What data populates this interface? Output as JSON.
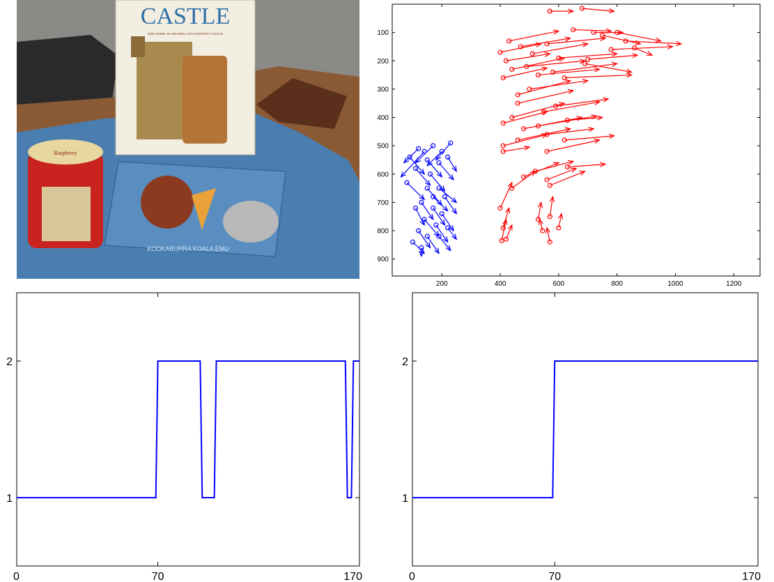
{
  "photo": {
    "book_title": "CASTLE",
    "book_subtitle": "SEE INSIDE AN AMAZING 14TH-CENTURY CASTLE",
    "tin_label": "Raspberry",
    "puzzle_caption": "KOOKABURRA KOALA EMU",
    "colors": {
      "table": "#8a5a35",
      "cloth": "#4a7eb1",
      "book": "#f2eee1",
      "tin": "#c8231e",
      "wall": "#7c7d78"
    }
  },
  "chart_data": [
    {
      "type": "scatter",
      "subtype": "motion-vectors",
      "xlim": [
        30,
        1290
      ],
      "ylim": [
        960,
        0
      ],
      "y_inverted": true,
      "xticks": [
        "200",
        "400",
        "600",
        "800",
        "1000",
        "1200"
      ],
      "yticks": [
        "100",
        "200",
        "300",
        "400",
        "500",
        "600",
        "700",
        "800",
        "900"
      ],
      "xtick_values": [
        200,
        400,
        600,
        800,
        1000,
        1200
      ],
      "ytick_values": [
        100,
        200,
        300,
        400,
        500,
        600,
        700,
        800,
        900
      ],
      "series": [
        {
          "color": "#ff0000",
          "vectors": [
            [
              570,
              25,
              650,
              25
            ],
            [
              680,
              15,
              790,
              25
            ],
            [
              650,
              90,
              780,
              95
            ],
            [
              720,
              100,
              820,
              100
            ],
            [
              800,
              100,
              950,
              130
            ],
            [
              750,
              110,
              880,
              140
            ],
            [
              400,
              170,
              540,
              140
            ],
            [
              430,
              130,
              600,
              95
            ],
            [
              470,
              150,
              640,
              120
            ],
            [
              510,
              175,
              700,
              140
            ],
            [
              560,
              140,
              760,
              120
            ],
            [
              600,
              190,
              800,
              175
            ],
            [
              420,
              200,
              570,
              175
            ],
            [
              440,
              230,
              620,
              190
            ],
            [
              490,
              220,
              690,
              200
            ],
            [
              530,
              250,
              740,
              230
            ],
            [
              580,
              240,
              800,
              210
            ],
            [
              620,
              260,
              850,
              250
            ],
            [
              410,
              260,
              560,
              225
            ],
            [
              460,
              320,
              640,
              270
            ],
            [
              460,
              350,
              650,
              305
            ],
            [
              500,
              300,
              700,
              270
            ],
            [
              550,
              380,
              740,
              345
            ],
            [
              590,
              360,
              770,
              335
            ],
            [
              410,
              420,
              560,
              380
            ],
            [
              440,
              400,
              620,
              350
            ],
            [
              480,
              440,
              680,
              400
            ],
            [
              530,
              430,
              730,
              395
            ],
            [
              560,
              460,
              720,
              440
            ],
            [
              630,
              410,
              750,
              400
            ],
            [
              410,
              500,
              560,
              460
            ],
            [
              460,
              480,
              640,
              440
            ],
            [
              560,
              520,
              740,
              480
            ],
            [
              620,
              480,
              790,
              465
            ],
            [
              410,
              520,
              500,
              505
            ],
            [
              480,
              610,
              600,
              560
            ],
            [
              520,
              590,
              650,
              555
            ],
            [
              560,
              620,
              660,
              580
            ],
            [
              570,
              640,
              690,
              590
            ],
            [
              630,
              575,
              760,
              565
            ],
            [
              440,
              650,
              520,
              590
            ],
            [
              400,
              720,
              440,
              630
            ],
            [
              410,
              790,
              430,
              720
            ],
            [
              420,
              830,
              440,
              780
            ],
            [
              405,
              835,
              420,
              760
            ],
            [
              530,
              760,
              540,
              700
            ],
            [
              570,
              750,
              580,
              680
            ],
            [
              600,
              790,
              610,
              740
            ],
            [
              545,
              800,
              535,
              760
            ],
            [
              570,
              840,
              560,
              790
            ],
            [
              780,
              160,
              990,
              150
            ],
            [
              860,
              155,
              920,
              180
            ],
            [
              830,
              130,
              1020,
              140
            ],
            [
              700,
              195,
              870,
              180
            ],
            [
              690,
              210,
              850,
              240
            ]
          ]
        },
        {
          "color": "#0000ff",
          "vectors": [
            [
              120,
              510,
              70,
              560
            ],
            [
              140,
              520,
              60,
              610
            ],
            [
              170,
              500,
              110,
              560
            ],
            [
              200,
              520,
              150,
              570
            ],
            [
              230,
              490,
              180,
              550
            ],
            [
              90,
              540,
              140,
              600
            ],
            [
              150,
              550,
              200,
              610
            ],
            [
              190,
              560,
              240,
              620
            ],
            [
              220,
              540,
              250,
              590
            ],
            [
              110,
              580,
              160,
              640
            ],
            [
              160,
              600,
              210,
              660
            ],
            [
              80,
              630,
              140,
              690
            ],
            [
              150,
              650,
              200,
              710
            ],
            [
              190,
              650,
              250,
              700
            ],
            [
              210,
              680,
              250,
              740
            ],
            [
              130,
              700,
              170,
              760
            ],
            [
              170,
              720,
              210,
              780
            ],
            [
              200,
              740,
              240,
              800
            ],
            [
              140,
              760,
              190,
              820
            ],
            [
              180,
              780,
              220,
              840
            ],
            [
              120,
              800,
              160,
              860
            ],
            [
              150,
              820,
              190,
              880
            ],
            [
              190,
              820,
              230,
              870
            ],
            [
              100,
              840,
              140,
              880
            ],
            [
              130,
              860,
              130,
              890
            ],
            [
              170,
              680,
              220,
              730
            ],
            [
              110,
              720,
              140,
              780
            ],
            [
              220,
              790,
              250,
              830
            ]
          ]
        }
      ]
    },
    {
      "type": "line",
      "subtype": "step",
      "xlim": [
        0,
        170
      ],
      "ylim": [
        0.5,
        2.5
      ],
      "xticks": [
        "0",
        "70",
        "170"
      ],
      "yticks": [
        "1",
        "2"
      ],
      "xtick_values": [
        0,
        70,
        170
      ],
      "ytick_values": [
        1,
        2
      ],
      "series": [
        {
          "color": "#0000ff",
          "x": [
            0,
            69,
            70,
            91,
            92,
            98,
            99,
            163,
            164,
            166,
            167,
            170
          ],
          "y": [
            1,
            1,
            2,
            2,
            1,
            1,
            2,
            2,
            1,
            1,
            2,
            2
          ]
        }
      ]
    },
    {
      "type": "line",
      "subtype": "step",
      "xlim": [
        0,
        170
      ],
      "ylim": [
        0.5,
        2.5
      ],
      "xticks": [
        "0",
        "70",
        "170"
      ],
      "yticks": [
        "1",
        "2"
      ],
      "xtick_values": [
        0,
        70,
        170
      ],
      "ytick_values": [
        1,
        2
      ],
      "series": [
        {
          "color": "#0000ff",
          "x": [
            0,
            69,
            70,
            170
          ],
          "y": [
            1,
            1,
            2,
            2
          ]
        }
      ]
    }
  ]
}
